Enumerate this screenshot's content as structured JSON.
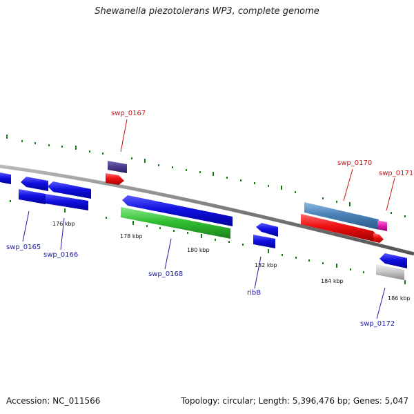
{
  "title": "Shewanella piezotolerans WP3, complete genome",
  "footer": {
    "accession": "Accession: NC_011566",
    "topology": "Topology: circular; Length: 5,396,476 bp; Genes: 5,047"
  },
  "colors": {
    "backbone": "#8a8a8a",
    "ticks": "#1a7a1a",
    "ticks_faint": "#4a8a4a",
    "blue_gene": "#1010d8",
    "red_gene": "#e81010",
    "green_gene": "#2fbf2f",
    "steelblue_gene": "#4a82b8",
    "purple_gene": "#4b3a8a",
    "magenta_gene": "#e020b0",
    "gray_gene": "#c0c0c0",
    "label_blue": "#1a1aa8",
    "label_red": "#cc1111"
  },
  "ruler_labels": [
    "176 kbp",
    "178 kbp",
    "180 kbp",
    "182 kbp",
    "184 kbp",
    "186 kbp"
  ],
  "genes": [
    {
      "label": "swp_0165",
      "color": "label_blue",
      "icon": "blue-gene-arrow"
    },
    {
      "label": "swp_0166",
      "color": "label_blue",
      "icon": "blue-gene-arrow"
    },
    {
      "label": "swp_0167",
      "color": "label_red",
      "icon": "red-gene-arrow"
    },
    {
      "label": "swp_0168",
      "color": "label_blue",
      "icon": "blue-gene-arrow"
    },
    {
      "label": "ribB",
      "color": "label_blue",
      "icon": "blue-gene-arrow"
    },
    {
      "label": "swp_0170",
      "color": "label_red",
      "icon": "steelblue-gene-arrow"
    },
    {
      "label": "swp_0171",
      "color": "label_red",
      "icon": "magenta-gene-arrow"
    },
    {
      "label": "swp_0172",
      "color": "label_blue",
      "icon": "gray-gene-arrow"
    }
  ]
}
